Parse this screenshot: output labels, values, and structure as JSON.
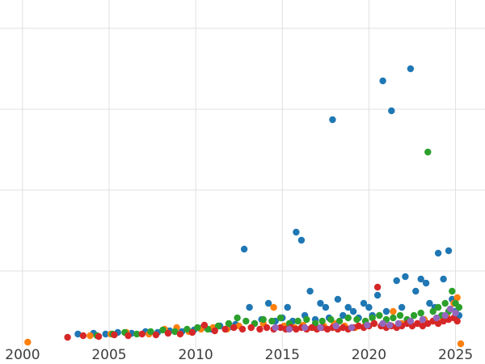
{
  "chart_data": {
    "type": "scatter",
    "title": "",
    "xlabel": "",
    "ylabel": "",
    "xlim": [
      1998.7,
      2026.7
    ],
    "ylim": [
      -0.15,
      4.35
    ],
    "x_ticks": [
      2000,
      2005,
      2010,
      2015,
      2020,
      2025
    ],
    "x_tick_labels": [
      "2000",
      "2005",
      "2010",
      "2015",
      "2020",
      "2025"
    ],
    "y_gridlines": [
      1,
      2,
      3,
      4
    ],
    "grid": true,
    "grid_color": "#e0e0e0",
    "background_color": "#ffffff",
    "tick_label_color": "#3d3d3d",
    "marker_radius": 4.2,
    "legend_position": "none",
    "series": [
      {
        "name": "series-blue",
        "color": "#1f77b4",
        "points": [
          [
            2003.2,
            0.22
          ],
          [
            2004.1,
            0.23
          ],
          [
            2004.8,
            0.22
          ],
          [
            2005.5,
            0.24
          ],
          [
            2006.3,
            0.23
          ],
          [
            2007.1,
            0.25
          ],
          [
            2007.8,
            0.24
          ],
          [
            2008.5,
            0.26
          ],
          [
            2009.2,
            0.25
          ],
          [
            2009.9,
            0.27
          ],
          [
            2010.4,
            0.3
          ],
          [
            2010.9,
            0.28
          ],
          [
            2011.4,
            0.32
          ],
          [
            2011.9,
            0.3
          ],
          [
            2012.3,
            0.34
          ],
          [
            2012.8,
            1.27
          ],
          [
            2013.1,
            0.55
          ],
          [
            2013.4,
            0.35
          ],
          [
            2013.8,
            0.4
          ],
          [
            2014.2,
            0.6
          ],
          [
            2014.6,
            0.38
          ],
          [
            2015.0,
            0.42
          ],
          [
            2015.3,
            0.55
          ],
          [
            2015.6,
            0.38
          ],
          [
            2015.8,
            1.48
          ],
          [
            2016.1,
            1.38
          ],
          [
            2016.3,
            0.45
          ],
          [
            2016.6,
            0.75
          ],
          [
            2016.9,
            0.4
          ],
          [
            2017.2,
            0.6
          ],
          [
            2017.5,
            0.55
          ],
          [
            2017.7,
            0.42
          ],
          [
            2017.9,
            2.87
          ],
          [
            2018.2,
            0.65
          ],
          [
            2018.5,
            0.45
          ],
          [
            2018.8,
            0.55
          ],
          [
            2019.1,
            0.5
          ],
          [
            2019.4,
            0.42
          ],
          [
            2019.7,
            0.6
          ],
          [
            2020.0,
            0.55
          ],
          [
            2020.2,
            0.45
          ],
          [
            2020.5,
            0.7
          ],
          [
            2020.8,
            3.35
          ],
          [
            2021.0,
            0.5
          ],
          [
            2021.3,
            2.98
          ],
          [
            2021.6,
            0.88
          ],
          [
            2021.9,
            0.55
          ],
          [
            2022.1,
            0.93
          ],
          [
            2022.4,
            3.5
          ],
          [
            2022.7,
            0.75
          ],
          [
            2023.0,
            0.9
          ],
          [
            2023.3,
            0.85
          ],
          [
            2023.5,
            0.6
          ],
          [
            2023.8,
            0.55
          ],
          [
            2024.0,
            1.22
          ],
          [
            2024.3,
            0.9
          ],
          [
            2024.6,
            1.25
          ],
          [
            2024.8,
            0.65
          ],
          [
            2025.0,
            0.5
          ],
          [
            2025.2,
            0.45
          ]
        ]
      },
      {
        "name": "series-orange",
        "color": "#ff7f0e",
        "points": [
          [
            2000.3,
            0.12
          ],
          [
            2003.9,
            0.2
          ],
          [
            2005.1,
            0.22
          ],
          [
            2006.0,
            0.24
          ],
          [
            2007.3,
            0.22
          ],
          [
            2008.2,
            0.28
          ],
          [
            2008.9,
            0.3
          ],
          [
            2009.6,
            0.25
          ],
          [
            2010.3,
            0.28
          ],
          [
            2011.0,
            0.3
          ],
          [
            2011.8,
            0.28
          ],
          [
            2012.5,
            0.32
          ],
          [
            2013.2,
            0.3
          ],
          [
            2013.9,
            0.35
          ],
          [
            2014.5,
            0.55
          ],
          [
            2015.1,
            0.32
          ],
          [
            2015.7,
            0.3
          ],
          [
            2016.2,
            0.33
          ],
          [
            2016.8,
            0.3
          ],
          [
            2017.4,
            0.32
          ],
          [
            2018.0,
            0.35
          ],
          [
            2018.6,
            0.32
          ],
          [
            2019.2,
            0.3
          ],
          [
            2019.8,
            0.33
          ],
          [
            2020.3,
            0.35
          ],
          [
            2020.9,
            0.32
          ],
          [
            2021.4,
            0.5
          ],
          [
            2021.9,
            0.35
          ],
          [
            2022.3,
            0.38
          ],
          [
            2022.8,
            0.35
          ],
          [
            2023.2,
            0.4
          ],
          [
            2023.7,
            0.38
          ],
          [
            2024.1,
            0.42
          ],
          [
            2024.5,
            0.45
          ],
          [
            2024.9,
            0.6
          ],
          [
            2025.1,
            0.67
          ],
          [
            2025.3,
            0.1
          ]
        ]
      },
      {
        "name": "series-green",
        "color": "#2ca02c",
        "points": [
          [
            2004.3,
            0.2
          ],
          [
            2005.2,
            0.22
          ],
          [
            2005.9,
            0.24
          ],
          [
            2006.6,
            0.22
          ],
          [
            2007.4,
            0.25
          ],
          [
            2008.1,
            0.27
          ],
          [
            2008.8,
            0.25
          ],
          [
            2009.5,
            0.28
          ],
          [
            2010.1,
            0.3
          ],
          [
            2010.7,
            0.28
          ],
          [
            2011.3,
            0.32
          ],
          [
            2011.9,
            0.35
          ],
          [
            2012.4,
            0.42
          ],
          [
            2012.9,
            0.38
          ],
          [
            2013.4,
            0.35
          ],
          [
            2013.9,
            0.4
          ],
          [
            2014.4,
            0.38
          ],
          [
            2014.9,
            0.42
          ],
          [
            2015.4,
            0.35
          ],
          [
            2015.9,
            0.38
          ],
          [
            2016.4,
            0.4
          ],
          [
            2016.9,
            0.35
          ],
          [
            2017.3,
            0.38
          ],
          [
            2017.8,
            0.4
          ],
          [
            2018.3,
            0.38
          ],
          [
            2018.8,
            0.42
          ],
          [
            2019.3,
            0.4
          ],
          [
            2019.8,
            0.38
          ],
          [
            2020.2,
            0.42
          ],
          [
            2020.6,
            0.45
          ],
          [
            2021.0,
            0.4
          ],
          [
            2021.4,
            0.42
          ],
          [
            2021.8,
            0.45
          ],
          [
            2022.2,
            0.4
          ],
          [
            2022.6,
            0.45
          ],
          [
            2023.0,
            0.48
          ],
          [
            2023.4,
            2.47
          ],
          [
            2023.7,
            0.5
          ],
          [
            2024.0,
            0.55
          ],
          [
            2024.2,
            0.45
          ],
          [
            2024.4,
            0.6
          ],
          [
            2024.6,
            0.5
          ],
          [
            2024.8,
            0.75
          ],
          [
            2025.0,
            0.6
          ],
          [
            2025.2,
            0.55
          ]
        ]
      },
      {
        "name": "series-red",
        "color": "#d62728",
        "points": [
          [
            2002.6,
            0.18
          ],
          [
            2003.5,
            0.2
          ],
          [
            2004.4,
            0.19
          ],
          [
            2005.3,
            0.21
          ],
          [
            2006.1,
            0.2
          ],
          [
            2006.9,
            0.22
          ],
          [
            2007.7,
            0.21
          ],
          [
            2008.4,
            0.23
          ],
          [
            2009.1,
            0.22
          ],
          [
            2009.8,
            0.24
          ],
          [
            2010.5,
            0.33
          ],
          [
            2011.1,
            0.26
          ],
          [
            2011.7,
            0.28
          ],
          [
            2012.2,
            0.3
          ],
          [
            2012.7,
            0.28
          ],
          [
            2013.2,
            0.3
          ],
          [
            2013.7,
            0.28
          ],
          [
            2014.1,
            0.3
          ],
          [
            2014.5,
            0.28
          ],
          [
            2014.9,
            0.3
          ],
          [
            2015.2,
            0.28
          ],
          [
            2015.5,
            0.3
          ],
          [
            2015.8,
            0.28
          ],
          [
            2016.1,
            0.3
          ],
          [
            2016.4,
            0.28
          ],
          [
            2016.7,
            0.3
          ],
          [
            2017.0,
            0.28
          ],
          [
            2017.3,
            0.3
          ],
          [
            2017.6,
            0.28
          ],
          [
            2017.9,
            0.3
          ],
          [
            2018.2,
            0.28
          ],
          [
            2018.5,
            0.3
          ],
          [
            2018.8,
            0.28
          ],
          [
            2019.1,
            0.3
          ],
          [
            2019.4,
            0.32
          ],
          [
            2019.7,
            0.3
          ],
          [
            2020.0,
            0.32
          ],
          [
            2020.3,
            0.35
          ],
          [
            2020.5,
            0.8
          ],
          [
            2020.7,
            0.32
          ],
          [
            2021.0,
            0.3
          ],
          [
            2021.3,
            0.32
          ],
          [
            2021.6,
            0.3
          ],
          [
            2021.9,
            0.32
          ],
          [
            2022.2,
            0.35
          ],
          [
            2022.5,
            0.32
          ],
          [
            2022.8,
            0.35
          ],
          [
            2023.1,
            0.32
          ],
          [
            2023.4,
            0.35
          ],
          [
            2023.7,
            0.38
          ],
          [
            2024.0,
            0.35
          ],
          [
            2024.3,
            0.38
          ],
          [
            2024.6,
            0.4
          ],
          [
            2024.9,
            0.42
          ],
          [
            2025.1,
            0.38
          ]
        ]
      },
      {
        "name": "series-purple",
        "color": "#9467bd",
        "points": [
          [
            2014.6,
            0.3
          ],
          [
            2015.4,
            0.28
          ],
          [
            2016.3,
            0.3
          ],
          [
            2017.2,
            0.3
          ],
          [
            2018.1,
            0.32
          ],
          [
            2019.0,
            0.3
          ],
          [
            2019.9,
            0.33
          ],
          [
            2020.8,
            0.35
          ],
          [
            2021.2,
            0.33
          ],
          [
            2021.7,
            0.35
          ],
          [
            2022.4,
            0.38
          ],
          [
            2023.1,
            0.4
          ],
          [
            2023.9,
            0.42
          ],
          [
            2024.4,
            0.45
          ],
          [
            2024.7,
            0.53
          ],
          [
            2025.0,
            0.48
          ]
        ]
      }
    ]
  }
}
